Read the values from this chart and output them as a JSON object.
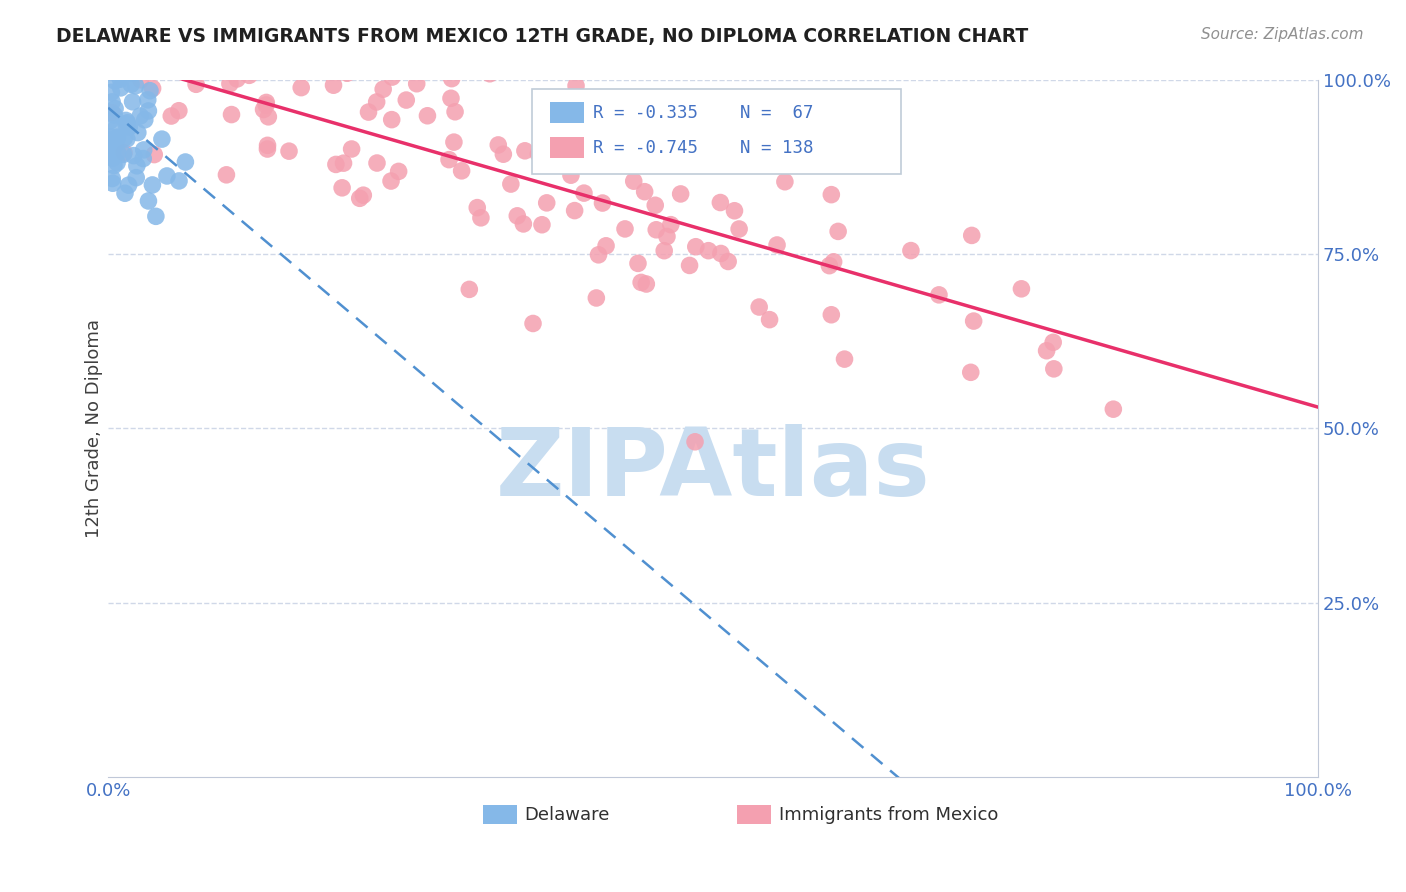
{
  "title": "DELAWARE VS IMMIGRANTS FROM MEXICO 12TH GRADE, NO DIPLOMA CORRELATION CHART",
  "source": "Source: ZipAtlas.com",
  "ylabel": "12th Grade, No Diploma",
  "xlim": [
    0.0,
    1.0
  ],
  "ylim": [
    0.0,
    1.0
  ],
  "xtick_labels": [
    "0.0%",
    "100.0%"
  ],
  "ytick_labels": [
    "25.0%",
    "50.0%",
    "75.0%",
    "100.0%"
  ],
  "ytick_vals": [
    0.25,
    0.5,
    0.75,
    1.0
  ],
  "delaware_R": -0.335,
  "delaware_N": 67,
  "mexico_R": -0.745,
  "mexico_N": 138,
  "delaware_color": "#85b8e8",
  "mexico_color": "#f4a0b0",
  "delaware_line_color": "#5090d0",
  "mexico_line_color": "#e8306a",
  "title_color": "#202020",
  "source_color": "#909090",
  "legend_text_color": "#4472c4",
  "legend_R_color": "#e83060",
  "watermark_text": "ZIPAtlas",
  "watermark_color": "#c8ddf0",
  "background_color": "#ffffff",
  "grid_color": "#d0d8e8",
  "seed": 99,
  "bottom_legend_label_del": "Delaware",
  "bottom_legend_label_mex": "Immigrants from Mexico"
}
